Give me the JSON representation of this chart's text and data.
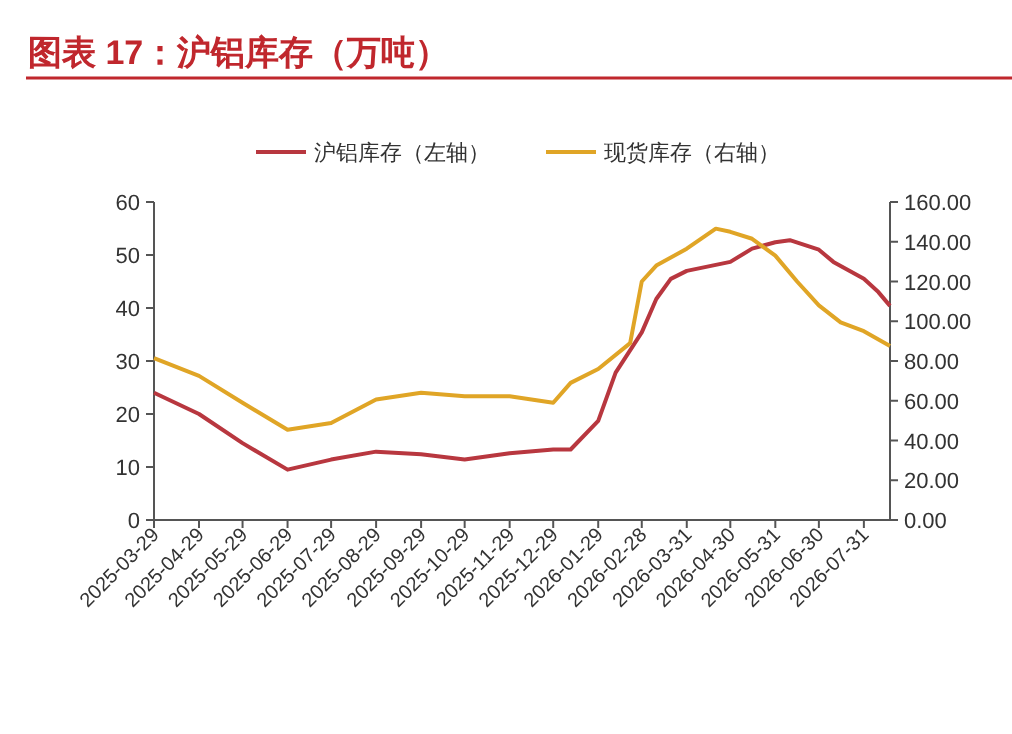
{
  "chart_data": {
    "type": "line",
    "title": "图表 17：沪铝库存（万吨）",
    "legend": "top",
    "grid": false,
    "xlim": [
      "2025-03-29",
      "2026-08-18"
    ],
    "xticks": [
      "2025-03-29",
      "2025-04-29",
      "2025-05-29",
      "2025-06-29",
      "2025-07-29",
      "2025-08-29",
      "2025-09-29",
      "2025-10-29",
      "2025-11-29",
      "2025-12-29",
      "2026-01-29",
      "2026-02-28",
      "2026-03-31",
      "2026-04-30",
      "2026-05-31",
      "2026-06-30",
      "2026-07-31"
    ],
    "ylim": [
      0,
      60
    ],
    "yticks": [
      0,
      10,
      20,
      30,
      40,
      50,
      60
    ],
    "y2lim": [
      0,
      160
    ],
    "y2ticks": [
      {
        "value": 0,
        "label": "0.00"
      },
      {
        "value": 20,
        "label": "20.00"
      },
      {
        "value": 40,
        "label": "40.00"
      },
      {
        "value": 60,
        "label": "60.00"
      },
      {
        "value": 80,
        "label": "80.00"
      },
      {
        "value": 100,
        "label": "100.00"
      },
      {
        "value": 120,
        "label": "120.00"
      },
      {
        "value": 140,
        "label": "140.00"
      },
      {
        "value": 160,
        "label": "160.00"
      }
    ],
    "series": [
      {
        "name": "沪铝库存（左轴）",
        "color": "#b8373f",
        "axis": "y",
        "x": [
          "2025-03-29",
          "2025-04-29",
          "2025-05-29",
          "2025-06-29",
          "2025-07-29",
          "2025-08-29",
          "2025-09-29",
          "2025-10-29",
          "2025-11-29",
          "2025-12-29",
          "2026-01-10",
          "2026-01-29",
          "2026-02-10",
          "2026-02-28",
          "2026-03-10",
          "2026-03-20",
          "2026-03-31",
          "2026-04-30",
          "2026-05-15",
          "2026-05-31",
          "2026-06-10",
          "2026-06-30",
          "2026-07-10",
          "2026-07-31",
          "2026-08-10",
          "2026-08-18"
        ],
        "values": [
          24,
          20,
          14.5,
          9.5,
          11.4,
          12.9,
          12.4,
          11.4,
          12.6,
          13.3,
          13.3,
          18.7,
          27.8,
          35.4,
          41.7,
          45.5,
          47,
          48.7,
          51.2,
          52.4,
          52.8,
          51,
          48.7,
          45.5,
          43,
          40.4
        ]
      },
      {
        "name": "现货库存（右轴）",
        "color": "#e0a526",
        "axis": "y2",
        "x": [
          "2025-03-29",
          "2025-04-29",
          "2025-05-29",
          "2025-06-29",
          "2025-07-29",
          "2025-08-29",
          "2025-09-29",
          "2025-10-29",
          "2025-11-29",
          "2025-12-29",
          "2026-01-10",
          "2026-01-29",
          "2026-02-20",
          "2026-02-28",
          "2026-03-10",
          "2026-03-31",
          "2026-04-20",
          "2026-04-30",
          "2026-05-15",
          "2026-05-31",
          "2026-06-15",
          "2026-06-30",
          "2026-07-15",
          "2026-07-31",
          "2026-08-18"
        ],
        "values": [
          81.5,
          72.5,
          59,
          45.4,
          48.8,
          60.6,
          64,
          62.3,
          62.3,
          59,
          69,
          76,
          89,
          120,
          128,
          136.5,
          146.6,
          145,
          141.5,
          133,
          120,
          108,
          99.4,
          95,
          87.6
        ]
      }
    ]
  }
}
